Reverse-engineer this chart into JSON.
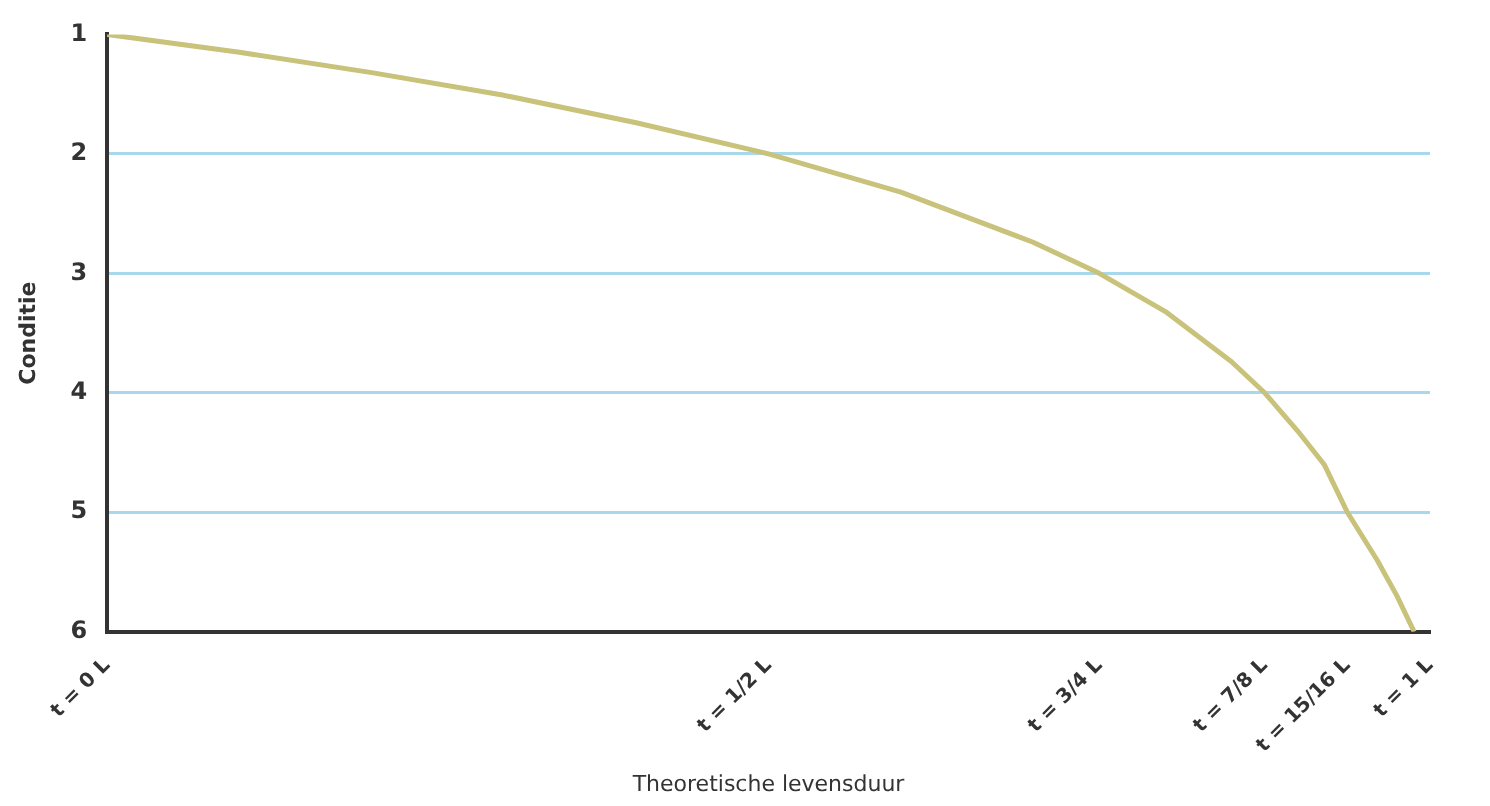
{
  "chart_data": {
    "type": "line",
    "xlabel": "Theoretische levensduur",
    "ylabel": "Conditie",
    "x": [
      0,
      0.1,
      0.2,
      0.3,
      0.4,
      0.5,
      0.6,
      0.7,
      0.75,
      0.8,
      0.85,
      0.875,
      0.9,
      0.92,
      0.9375,
      0.96,
      0.975,
      0.988
    ],
    "series": [
      {
        "color": "#c8c27a",
        "values": [
          1,
          1.15,
          1.32,
          1.51,
          1.74,
          2,
          2.32,
          2.74,
          3,
          3.32,
          3.74,
          4,
          4.32,
          4.6,
          5,
          5.4,
          5.7,
          6
        ]
      }
    ],
    "xlim": [
      0,
      1
    ],
    "xticks": [
      {
        "value": 0,
        "label": "t = 0 L"
      },
      {
        "value": 0.5,
        "label": "t = 1/2 L"
      },
      {
        "value": 0.75,
        "label": "t = 3/4 L"
      },
      {
        "value": 0.875,
        "label": "t = 7/8 L"
      },
      {
        "value": 0.9375,
        "label": "t = 15/16 L"
      },
      {
        "value": 1,
        "label": "t = 1 L"
      }
    ],
    "ylim": [
      6,
      1
    ],
    "yticks": [
      1,
      2,
      3,
      4,
      5,
      6
    ],
    "grid": "y",
    "legend": false,
    "marker": "none",
    "line_style": "solid"
  }
}
